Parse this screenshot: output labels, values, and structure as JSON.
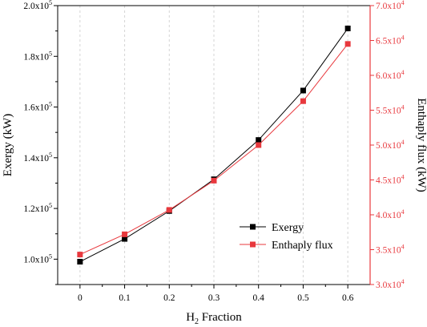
{
  "chart_data": {
    "type": "line",
    "xlabel": "H2 Fraction",
    "xlabel_parts": {
      "base": "H",
      "sub": "2",
      "rest": " Fraction"
    },
    "x": [
      0,
      0.1,
      0.2,
      0.3,
      0.4,
      0.5,
      0.6
    ],
    "x_ticks": [
      "0",
      "0.1",
      "0.2",
      "0.3",
      "0.4",
      "0.5",
      "0.6"
    ],
    "xlim": [
      -0.05,
      0.65
    ],
    "left_axis": {
      "label": "Exergy (kW)",
      "ylim": [
        90000,
        200000
      ],
      "ticks": [
        {
          "value": 100000,
          "mant": "1.0x10",
          "exp": "5"
        },
        {
          "value": 120000,
          "mant": "1.2x10",
          "exp": "5"
        },
        {
          "value": 140000,
          "mant": "1.4x10",
          "exp": "5"
        },
        {
          "value": 160000,
          "mant": "1.6x10",
          "exp": "5"
        },
        {
          "value": 180000,
          "mant": "1.8x10",
          "exp": "5"
        },
        {
          "value": 200000,
          "mant": "2.0x10",
          "exp": "5"
        }
      ]
    },
    "right_axis": {
      "label": "Enthaply flux (kW)",
      "ylim": [
        30000,
        70000
      ],
      "ticks": [
        {
          "value": 30000,
          "mant": "3.0x10",
          "exp": "4"
        },
        {
          "value": 35000,
          "mant": "3.5x10",
          "exp": "4"
        },
        {
          "value": 40000,
          "mant": "4.0x10",
          "exp": "4"
        },
        {
          "value": 45000,
          "mant": "4.5x10",
          "exp": "4"
        },
        {
          "value": 50000,
          "mant": "5.0x10",
          "exp": "4"
        },
        {
          "value": 55000,
          "mant": "5.5x10",
          "exp": "4"
        },
        {
          "value": 60000,
          "mant": "6.0x10",
          "exp": "4"
        },
        {
          "value": 65000,
          "mant": "6.5x10",
          "exp": "4"
        },
        {
          "value": 70000,
          "mant": "7.0x10",
          "exp": "4"
        }
      ]
    },
    "series": [
      {
        "name": "Exergy",
        "axis": "left",
        "color": "#000000",
        "values": [
          99000,
          108000,
          119000,
          131500,
          147000,
          166500,
          191000
        ]
      },
      {
        "name": "Enthaply flux",
        "axis": "right",
        "color": "#e8383d",
        "values": [
          34300,
          37200,
          40700,
          44900,
          50000,
          56300,
          64500
        ]
      }
    ],
    "grid": "vertical dashed",
    "legend_position": "bottom-right"
  }
}
